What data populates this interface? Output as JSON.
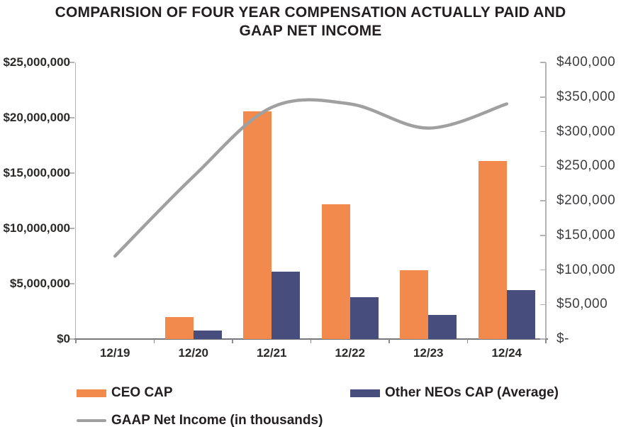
{
  "title": {
    "line1": "COMPARISION OF FOUR YEAR COMPENSATION ACTUALLY PAID AND",
    "line2": "GAAP NET INCOME"
  },
  "chart_data": {
    "type": "combo-bar-line",
    "categories": [
      "12/19",
      "12/20",
      "12/21",
      "12/22",
      "12/23",
      "12/24"
    ],
    "series": [
      {
        "name": "CEO CAP",
        "type": "bar",
        "axis": "left",
        "color": "#F28A4D",
        "values": [
          0,
          2000000,
          20600000,
          12200000,
          6200000,
          16100000
        ]
      },
      {
        "name": "Other NEOs CAP (Average)",
        "type": "bar",
        "axis": "left",
        "color": "#474E7D",
        "values": [
          0,
          800000,
          6100000,
          3800000,
          2200000,
          4400000
        ]
      },
      {
        "name": "GAAP Net Income (in thousands)",
        "type": "line",
        "axis": "right",
        "smooth": true,
        "color": "#A0A0A0",
        "values": [
          120000,
          235000,
          335000,
          340000,
          305000,
          340000
        ]
      }
    ],
    "left_axis": {
      "min": 0,
      "max": 25000000,
      "step": 5000000,
      "ticks": [
        "$25,000,000",
        "$20,000,000",
        "$15,000,000",
        "$10,000,000",
        "$5,000,000",
        "$0"
      ]
    },
    "right_axis": {
      "min": 0,
      "max": 400000,
      "step": 50000,
      "ticks": [
        "$400,000",
        "$350,000",
        "$300,000",
        "$250,000",
        "$200,000",
        "$150,000",
        "$100,000",
        "$50,000",
        "$-"
      ]
    },
    "grid": "off",
    "legend": {
      "position": "bottom",
      "items": [
        {
          "label": "CEO CAP",
          "color": "#F28A4D",
          "swatch": "bar"
        },
        {
          "label": "Other NEOs CAP (Average)",
          "color": "#474E7D",
          "swatch": "bar"
        },
        {
          "label": "GAAP Net Income (in thousands)",
          "color": "#A0A0A0",
          "swatch": "line"
        }
      ]
    }
  }
}
